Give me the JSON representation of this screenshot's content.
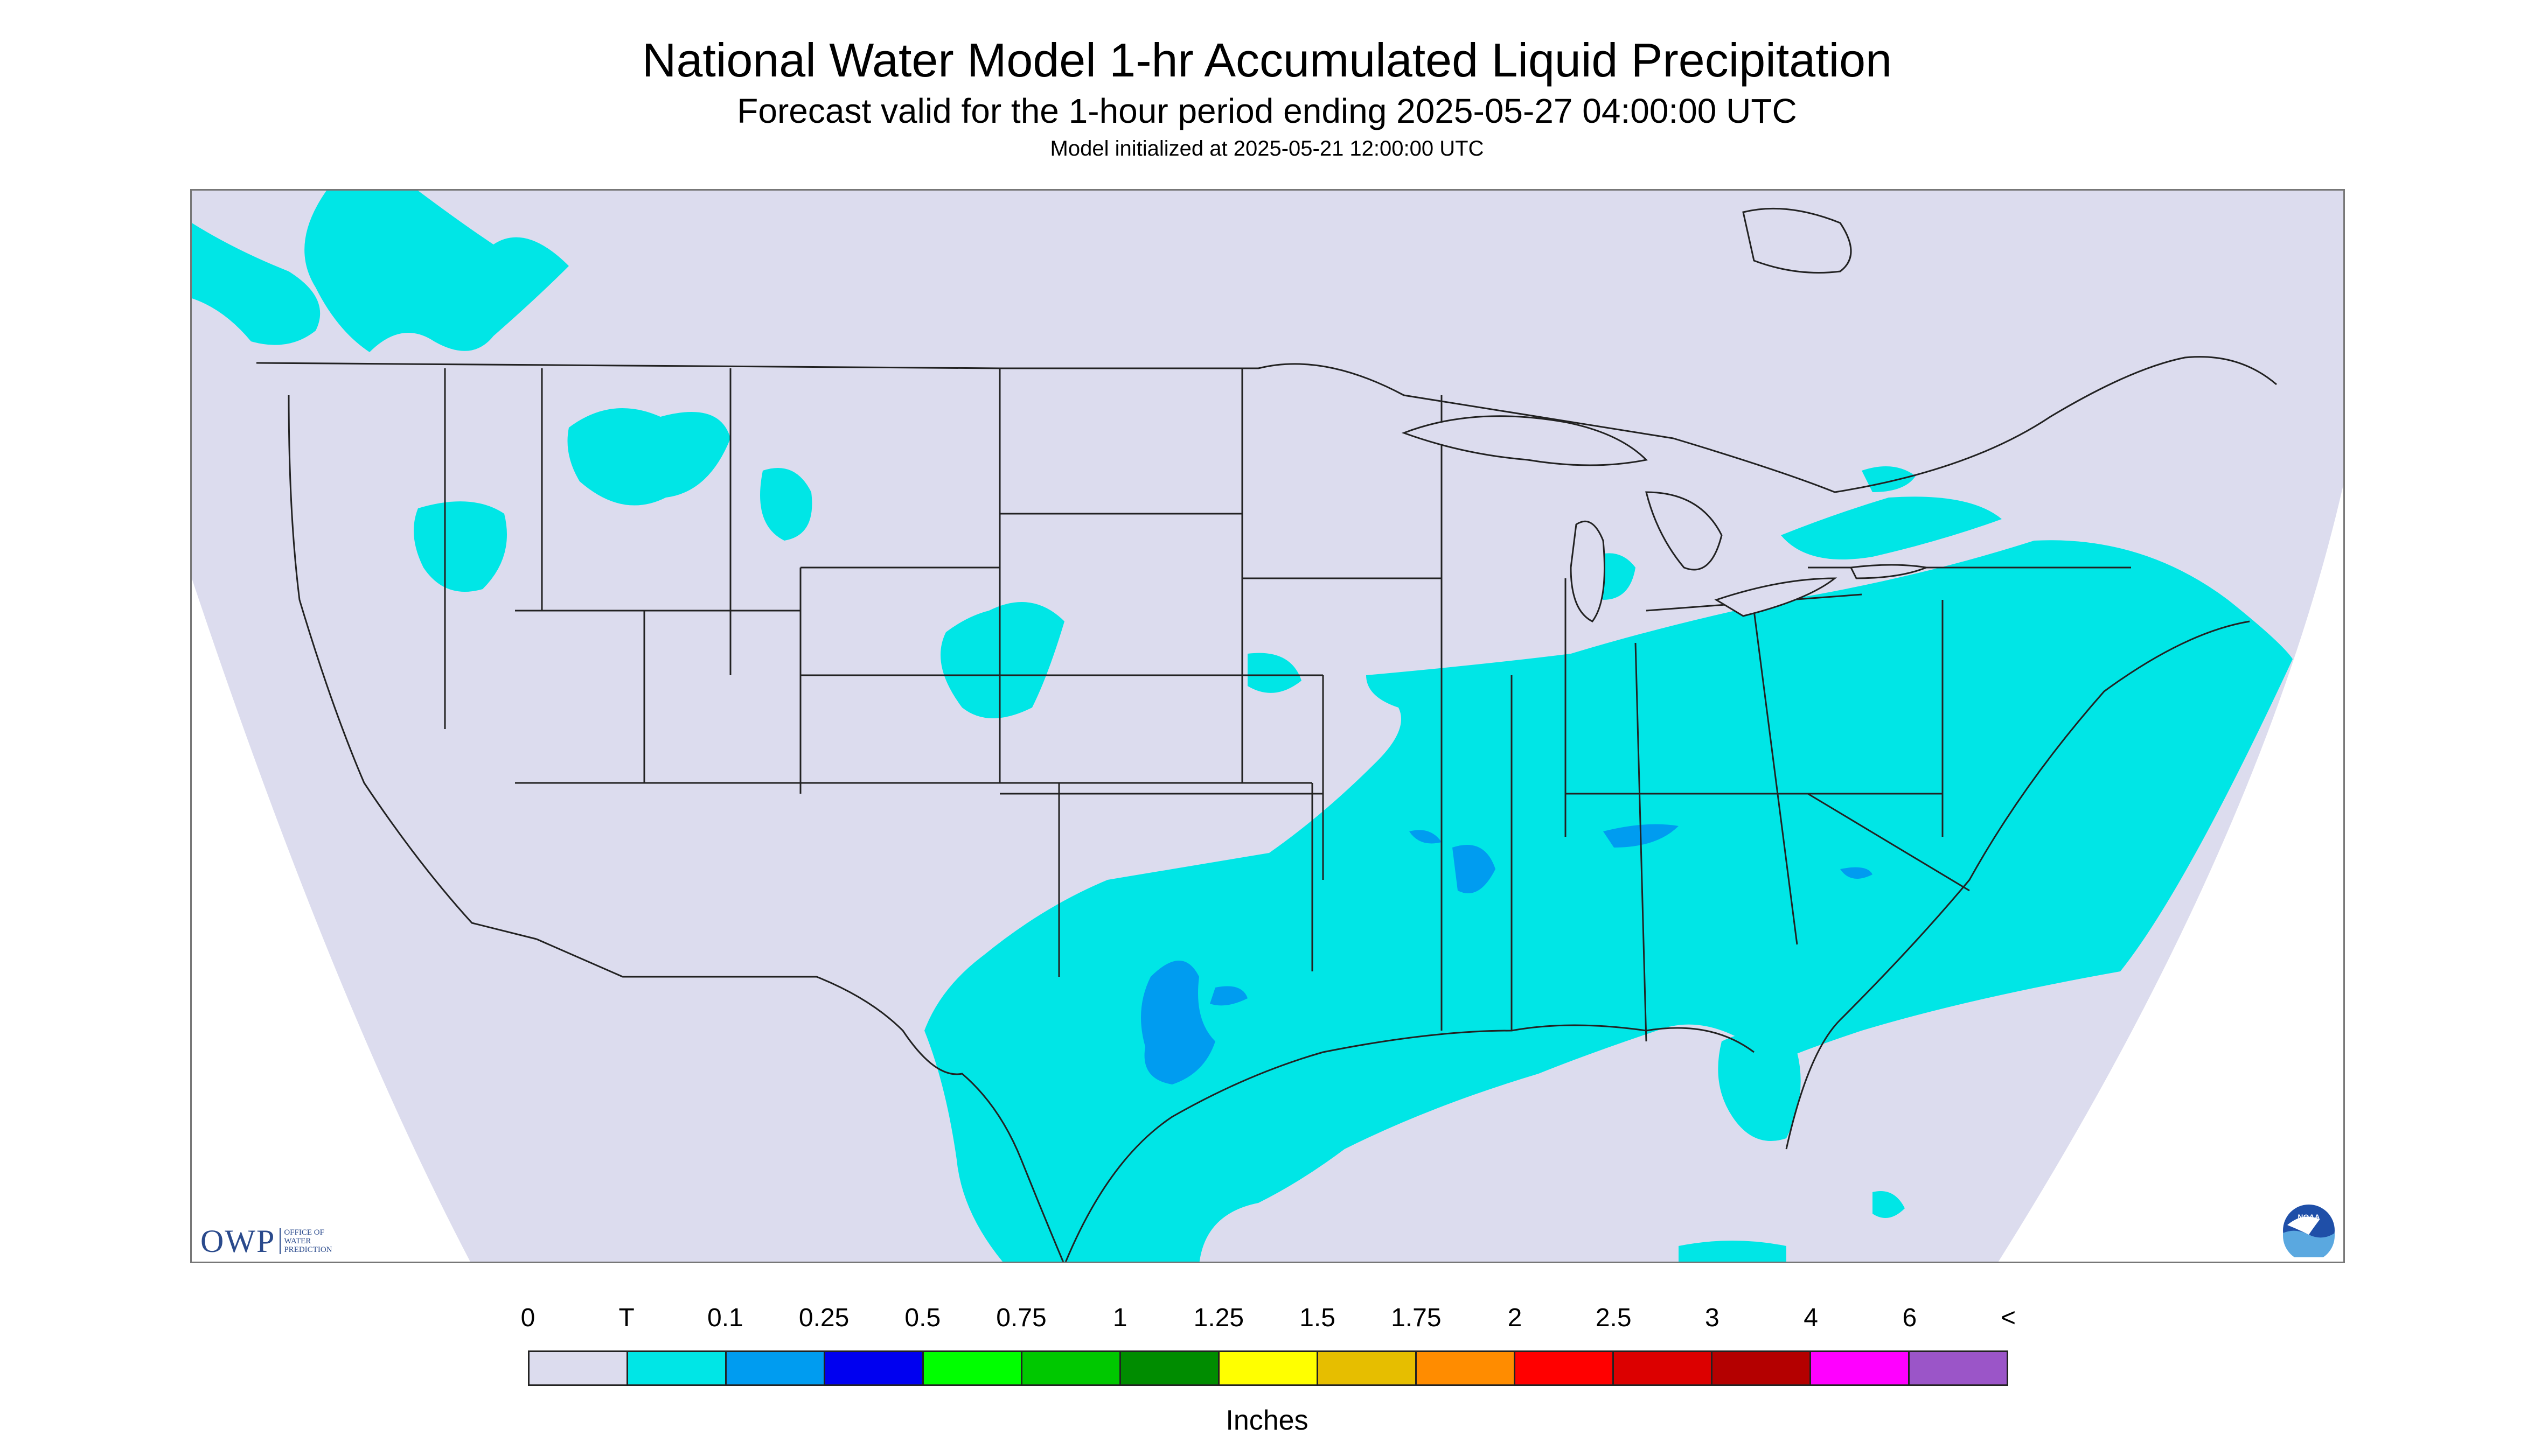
{
  "header": {
    "title": "National Water Model 1-hr Accumulated Liquid Precipitation",
    "subtitle": "Forecast valid for the 1-hour period ending 2025-05-27 04:00:00 UTC",
    "initialized": "Model initialized at 2025-05-21 12:00:00 UTC"
  },
  "map": {
    "background_color": "#dcdcee",
    "outside_domain_color": "#ffffff",
    "boundary_color": "#222222"
  },
  "logos": {
    "owp_text": "OWP",
    "owp_sub": [
      "OFFICE OF",
      "WATER",
      "PREDICTION"
    ],
    "noaa_text": "NOAA"
  },
  "legend": {
    "labels": [
      "0",
      "T",
      "0.1",
      "0.25",
      "0.5",
      "0.75",
      "1",
      "1.25",
      "1.5",
      "1.75",
      "2",
      "2.5",
      "3",
      "4",
      "6",
      "<"
    ],
    "colors": [
      "#dcdcee",
      "#00e6e6",
      "#009cf0",
      "#0000f0",
      "#00ff00",
      "#00c800",
      "#008c00",
      "#ffff00",
      "#e6be00",
      "#ff8c00",
      "#ff0000",
      "#dc0000",
      "#b40000",
      "#ff00ff",
      "#9b55c8"
    ],
    "unit": "Inches"
  }
}
